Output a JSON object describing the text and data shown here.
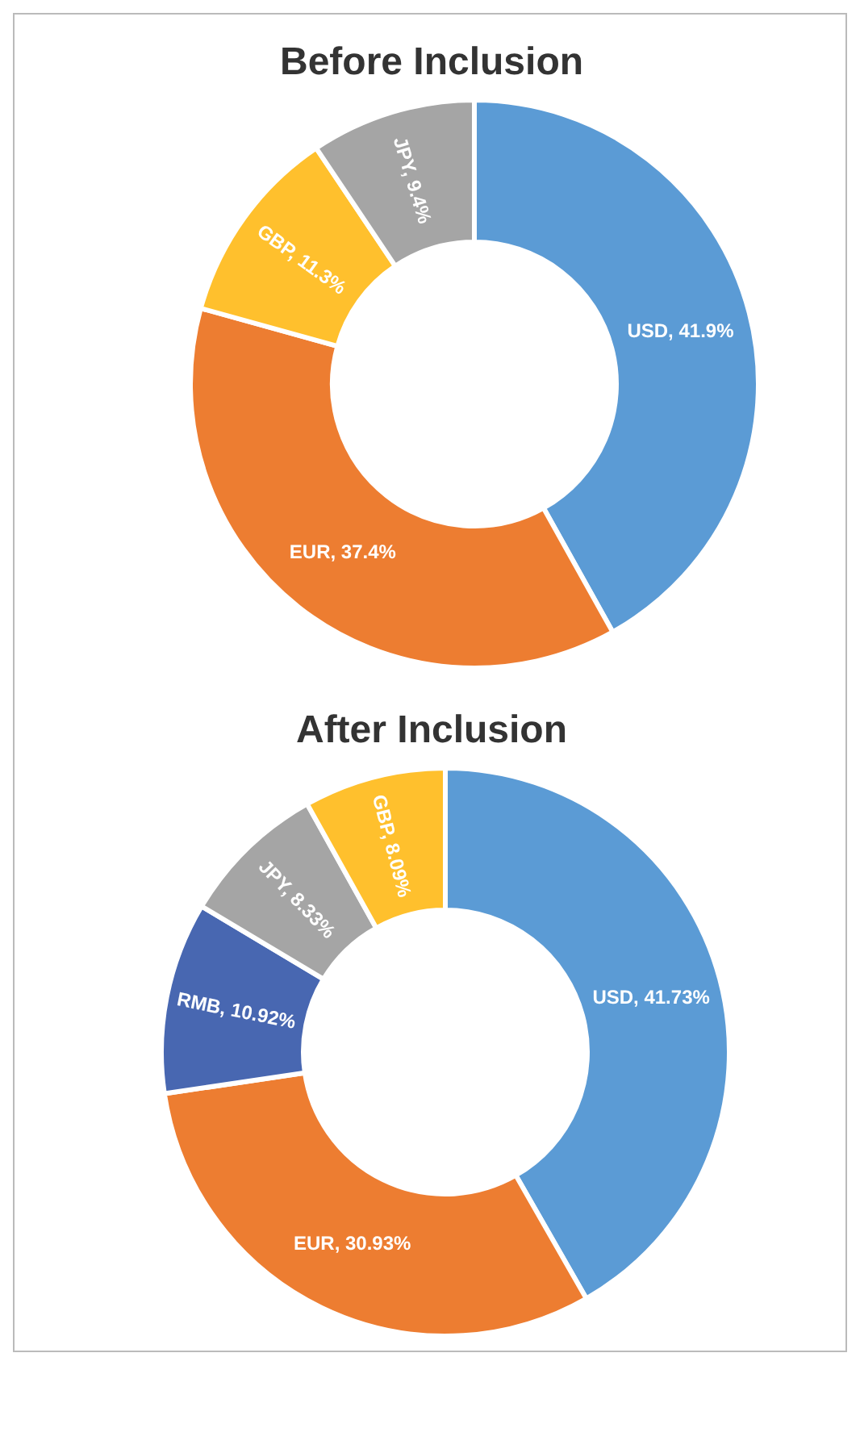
{
  "chart_data": [
    {
      "type": "donut",
      "title": "Before Inclusion",
      "categories": [
        "USD",
        "EUR",
        "GBP",
        "JPY"
      ],
      "values": [
        41.9,
        37.4,
        11.3,
        9.4
      ],
      "colors": [
        "#5b9bd5",
        "#ed7d31",
        "#ffc02d",
        "#a5a5a5"
      ],
      "value_labels": [
        "41.9%",
        "37.4%",
        "11.3%",
        "9.4%"
      ]
    },
    {
      "type": "donut",
      "title": "After Inclusion",
      "categories": [
        "USD",
        "EUR",
        "RMB",
        "JPY",
        "GBP"
      ],
      "values": [
        41.73,
        30.93,
        10.92,
        8.33,
        8.09
      ],
      "colors": [
        "#5b9bd5",
        "#ed7d31",
        "#4867b1",
        "#a5a5a5",
        "#ffc02d"
      ],
      "value_labels": [
        "41.73%",
        "30.93%",
        "10.92%",
        "8.33%",
        "8.09%"
      ]
    }
  ]
}
